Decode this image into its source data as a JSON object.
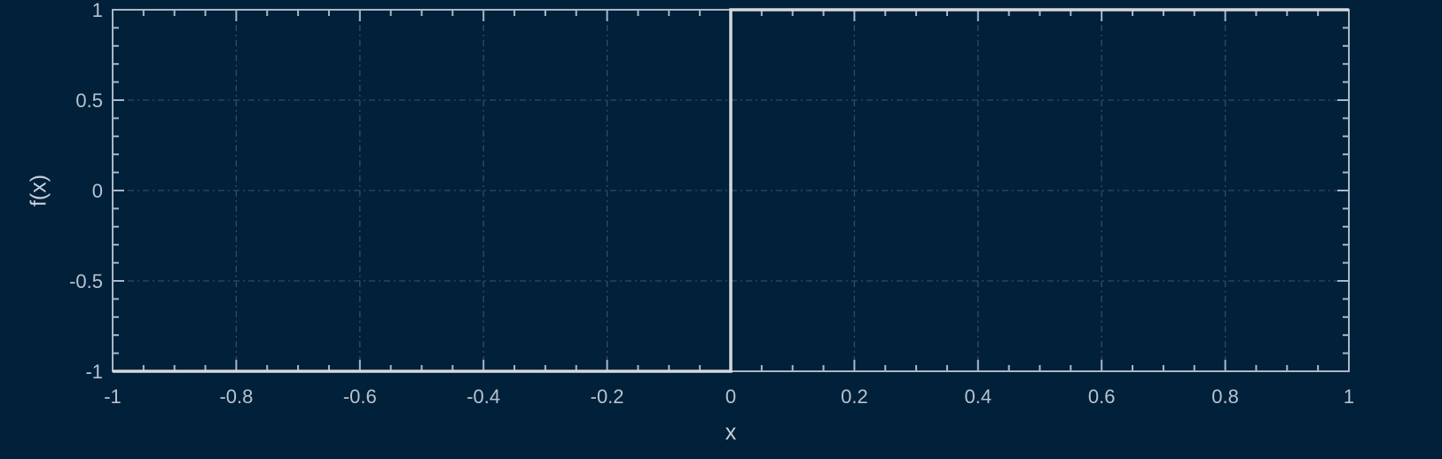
{
  "chart_data": {
    "type": "line",
    "title": "",
    "xlabel": "x",
    "ylabel": "f(x)",
    "xlim": [
      -1,
      1
    ],
    "ylim": [
      -1,
      1
    ],
    "grid": true,
    "x_ticks": [
      -1,
      -0.8,
      -0.6,
      -0.4,
      -0.2,
      0,
      0.2,
      0.4,
      0.6,
      0.8,
      1
    ],
    "x_tick_labels": [
      "-1",
      "-0.8",
      "-0.6",
      "-0.4",
      "-0.2",
      "0",
      "0.2",
      "0.4",
      "0.6",
      "0.8",
      "1"
    ],
    "y_ticks": [
      -1,
      -0.5,
      0,
      0.5,
      1
    ],
    "y_tick_labels": [
      "-1",
      "-0.5",
      "0",
      "0.5",
      "1"
    ],
    "series": [
      {
        "x": [
          -1,
          0,
          0,
          1
        ],
        "y": [
          -1,
          -1,
          1,
          1
        ],
        "color": "#d6d8dc"
      }
    ]
  },
  "colors": {
    "background": "#012039",
    "axis": "#a9b8c6",
    "grid": "#2e4d66",
    "text": "#b7c3cf"
  }
}
